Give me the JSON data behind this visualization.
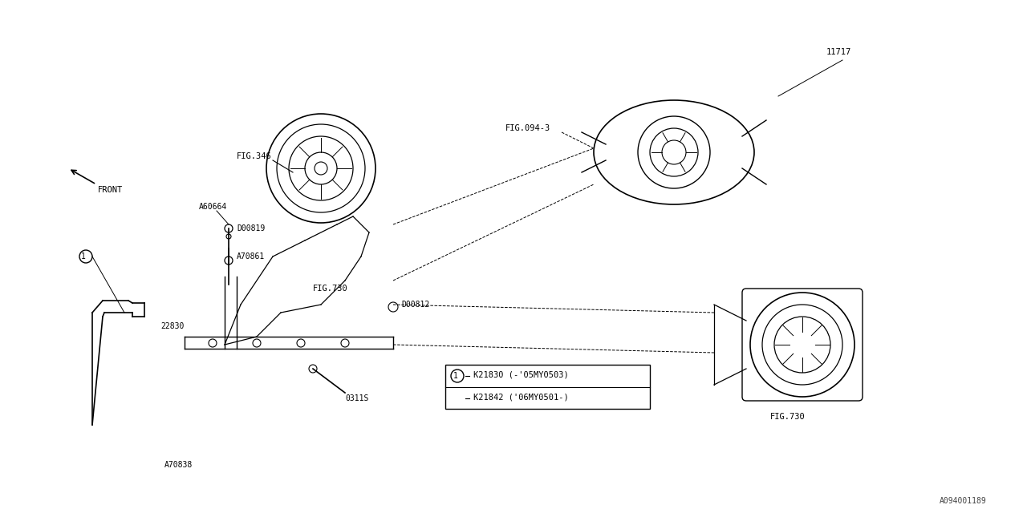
{
  "bg_color": "#ffffff",
  "line_color": "#000000",
  "fig_width": 12.8,
  "fig_height": 6.4,
  "title": "",
  "watermark": "A094001189",
  "labels": {
    "front_arrow": "FRONT",
    "part_11717": "11717",
    "part_fig094": "FIG.094-3",
    "part_fig346": "FIG.346",
    "part_fig730_center": "FIG.730",
    "part_fig730_right": "FIG.730",
    "part_A60664": "A60664",
    "part_D00819": "D00819",
    "part_A70861": "A70861",
    "part_22830": "22830",
    "part_D00812": "D00812",
    "part_0311S": "0311S",
    "part_A70838": "A70838",
    "part_K21830": "K21830 (-'05MY0503)",
    "part_K21842": "K21842 ('06MY0501-)",
    "circle_1": "1"
  }
}
